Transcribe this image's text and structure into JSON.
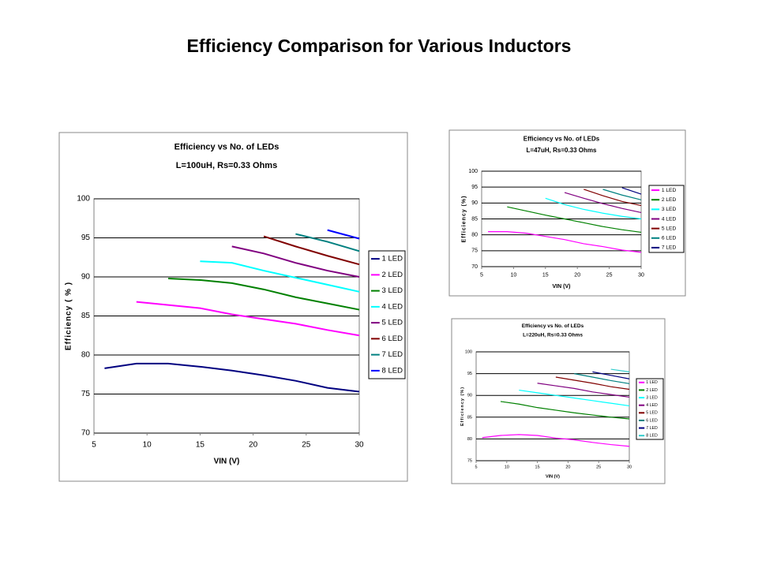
{
  "title": "Efficiency Comparison for Various Inductors",
  "chart_data": [
    {
      "type": "line",
      "title": "Efficiency vs No. of LEDs",
      "subtitle": "L=100uH, Rs=0.33 Ohms",
      "x_label": "VIN (V)",
      "y_label": "Efficiency ( % )",
      "xlim": [
        5,
        30
      ],
      "xticks": [
        5,
        10,
        15,
        20,
        25,
        30
      ],
      "ylim": [
        70,
        100
      ],
      "yticks": [
        70,
        75,
        80,
        85,
        90,
        95,
        100
      ],
      "grid": true,
      "x": [
        6,
        9,
        12,
        15,
        18,
        21,
        24,
        27,
        30
      ],
      "series": [
        {
          "name": "1 LED",
          "color": "#000080",
          "values": [
            78.3,
            78.9,
            78.9,
            78.5,
            78.0,
            77.4,
            76.7,
            75.8,
            75.3
          ]
        },
        {
          "name": "2 LED",
          "color": "#ff00ff",
          "values": [
            null,
            86.8,
            86.4,
            86.0,
            85.2,
            84.6,
            84.0,
            83.2,
            82.5
          ]
        },
        {
          "name": "3 LED",
          "color": "#008000",
          "values": [
            null,
            null,
            89.8,
            89.6,
            89.2,
            88.4,
            87.4,
            86.6,
            85.8
          ]
        },
        {
          "name": "4 LED",
          "color": "#00ffff",
          "values": [
            null,
            null,
            null,
            92.0,
            91.8,
            90.8,
            89.9,
            89.0,
            88.1
          ]
        },
        {
          "name": "5 LED",
          "color": "#800080",
          "values": [
            null,
            null,
            null,
            null,
            93.9,
            93.0,
            91.8,
            90.8,
            90.0
          ]
        },
        {
          "name": "6 LED",
          "color": "#800000",
          "values": [
            null,
            null,
            null,
            null,
            null,
            95.2,
            93.9,
            92.7,
            91.6
          ]
        },
        {
          "name": "7 LED",
          "color": "#008080",
          "values": [
            null,
            null,
            null,
            null,
            null,
            null,
            95.5,
            94.5,
            93.3
          ]
        },
        {
          "name": "8 LED",
          "color": "#0000ff",
          "values": [
            null,
            null,
            null,
            null,
            null,
            null,
            null,
            96.0,
            94.9
          ]
        }
      ]
    },
    {
      "type": "line",
      "title": "Efficiency vs No. of LEDs",
      "subtitle": "L=47uH, Rs=0.33 Ohms",
      "x_label": "VIN (V)",
      "y_label": "Efficiency (%)",
      "xlim": [
        5,
        30
      ],
      "xticks": [
        5,
        10,
        15,
        20,
        25,
        30
      ],
      "ylim": [
        70,
        100
      ],
      "yticks": [
        70,
        75,
        80,
        85,
        90,
        95,
        100
      ],
      "grid": true,
      "x": [
        6,
        9,
        12,
        15,
        18,
        21,
        24,
        27,
        30
      ],
      "series": [
        {
          "name": "1 LED",
          "color": "#ff00ff",
          "values": [
            81.0,
            81.0,
            80.5,
            79.5,
            78.5,
            77.2,
            76.3,
            75.2,
            74.5
          ]
        },
        {
          "name": "2 LED",
          "color": "#008000",
          "values": [
            null,
            88.8,
            87.5,
            86.2,
            85.0,
            83.8,
            82.6,
            81.6,
            80.8
          ]
        },
        {
          "name": "3 LED",
          "color": "#00ffff",
          "values": [
            null,
            null,
            null,
            91.5,
            89.5,
            88.0,
            86.8,
            85.8,
            85.0
          ]
        },
        {
          "name": "4 LED",
          "color": "#800080",
          "values": [
            null,
            null,
            null,
            null,
            93.3,
            91.5,
            89.8,
            88.3,
            87.0
          ]
        },
        {
          "name": "5 LED",
          "color": "#800000",
          "values": [
            null,
            null,
            null,
            null,
            null,
            94.3,
            92.3,
            90.5,
            89.2
          ]
        },
        {
          "name": "6 LED",
          "color": "#008080",
          "values": [
            null,
            null,
            null,
            null,
            null,
            null,
            94.3,
            92.5,
            91.0
          ]
        },
        {
          "name": "7 LED",
          "color": "#000080",
          "values": [
            null,
            null,
            null,
            null,
            null,
            null,
            null,
            94.8,
            92.8
          ]
        }
      ]
    },
    {
      "type": "line",
      "title": "Efficiency vs No. of LEDs",
      "subtitle": "L=220uH, Rs=0.33 Ohms",
      "x_label": "VIN (V)",
      "y_label": "Efficiency (%)",
      "xlim": [
        5,
        30
      ],
      "xticks": [
        5,
        10,
        15,
        20,
        25,
        30
      ],
      "ylim": [
        75,
        100
      ],
      "yticks": [
        75,
        80,
        85,
        90,
        95,
        100
      ],
      "grid": true,
      "x": [
        6,
        9,
        12,
        15,
        18,
        21,
        24,
        27,
        30
      ],
      "series": [
        {
          "name": "1 LED",
          "color": "#ff00ff",
          "values": [
            80.3,
            80.8,
            81.0,
            80.8,
            80.2,
            79.8,
            79.2,
            78.7,
            78.3
          ]
        },
        {
          "name": "2 LED",
          "color": "#008000",
          "values": [
            null,
            88.6,
            88.0,
            87.2,
            86.6,
            86.0,
            85.5,
            85.0,
            84.6
          ]
        },
        {
          "name": "3 LED",
          "color": "#00ffff",
          "values": [
            null,
            null,
            91.2,
            90.6,
            90.0,
            89.4,
            88.8,
            88.2,
            87.6
          ]
        },
        {
          "name": "4 LED",
          "color": "#800080",
          "values": [
            null,
            null,
            null,
            92.8,
            92.2,
            91.6,
            90.8,
            90.2,
            89.6
          ]
        },
        {
          "name": "5 LED",
          "color": "#800000",
          "values": [
            null,
            null,
            null,
            null,
            94.2,
            93.5,
            92.8,
            92.0,
            91.4
          ]
        },
        {
          "name": "6 LED",
          "color": "#008080",
          "values": [
            null,
            null,
            null,
            null,
            null,
            95.0,
            94.2,
            93.4,
            92.7
          ]
        },
        {
          "name": "7 LED",
          "color": "#000080",
          "values": [
            null,
            null,
            null,
            null,
            null,
            null,
            95.4,
            94.6,
            93.8
          ]
        },
        {
          "name": "8 LED",
          "color": "#33cccc",
          "values": [
            null,
            null,
            null,
            null,
            null,
            null,
            null,
            96.0,
            95.4
          ]
        }
      ]
    }
  ]
}
